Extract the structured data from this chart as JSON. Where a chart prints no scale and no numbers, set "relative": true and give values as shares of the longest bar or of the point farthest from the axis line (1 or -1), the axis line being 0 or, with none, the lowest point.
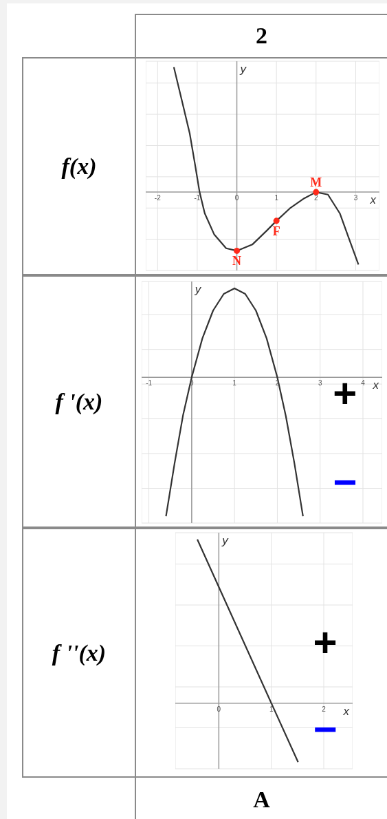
{
  "chart_data": [
    {
      "type": "line",
      "title": "f(x)",
      "subtitle": "2",
      "xlabel": "x",
      "ylabel": "y",
      "relative": true,
      "xlim": [
        -2.3,
        3.6
      ],
      "xticks": [
        -2,
        -1,
        0,
        1,
        2,
        3
      ],
      "grid": true,
      "marker": "none",
      "line_style": "solid",
      "series": [
        {
          "color": "#333333",
          "x": [
            -1.59,
            -1.37,
            -1.19,
            -1.06,
            -0.94,
            -0.81,
            -0.57,
            -0.27,
            0,
            0.39,
            0.75,
            1,
            1.34,
            1.7,
            2,
            2.3,
            2.6,
            2.84,
            3.07
          ],
          "values": [
            1,
            0.71,
            0.47,
            0.23,
            0,
            -0.17,
            -0.34,
            -0.45,
            -0.47,
            -0.42,
            -0.31,
            -0.23,
            -0.13,
            -0.05,
            0,
            -0.02,
            -0.17,
            -0.38,
            -0.58
          ]
        },
        {
          "type": "scatter",
          "color": "#ff2a1a",
          "marker": "circle",
          "x": [
            0,
            1,
            2
          ],
          "values": [
            -0.47,
            -0.23,
            0
          ]
        }
      ],
      "annotations": [
        {
          "text": "N",
          "x": 0,
          "y": -0.47
        },
        {
          "text": "F",
          "x": 1,
          "y": -0.23
        },
        {
          "text": "M",
          "x": 2,
          "y": 0
        }
      ]
    },
    {
      "type": "line",
      "title": "f '(x)",
      "xlabel": "x",
      "ylabel": "y",
      "relative": true,
      "xlim": [
        -1.17,
        4.45
      ],
      "xticks": [
        -1,
        0,
        1,
        2,
        3,
        4
      ],
      "grid": true,
      "marker": "none",
      "line_style": "solid",
      "series": [
        {
          "color": "#333333",
          "x": [
            -0.6,
            -0.4,
            -0.2,
            0,
            0.25,
            0.5,
            0.75,
            1,
            1.25,
            1.5,
            1.75,
            2,
            2.2,
            2.4,
            2.6
          ],
          "values": [
            -1,
            -0.62,
            -0.27,
            0,
            0.28,
            0.48,
            0.6,
            0.64,
            0.6,
            0.48,
            0.28,
            0,
            -0.28,
            -0.62,
            -1
          ]
        }
      ],
      "annotations": [
        "+",
        "−"
      ]
    },
    {
      "type": "line",
      "title": "f ''(x)",
      "subtitle": "A",
      "xlabel": "x",
      "ylabel": "y",
      "relative": true,
      "xlim": [
        -0.83,
        2.55
      ],
      "xticks": [
        0,
        1,
        2
      ],
      "grid": true,
      "marker": "none",
      "line_style": "solid",
      "series": [
        {
          "color": "#333333",
          "x": [
            -0.41,
            1,
            1.51
          ],
          "values": [
            1,
            0,
            -0.36
          ]
        }
      ],
      "annotations": [
        "+",
        "−"
      ]
    }
  ]
}
